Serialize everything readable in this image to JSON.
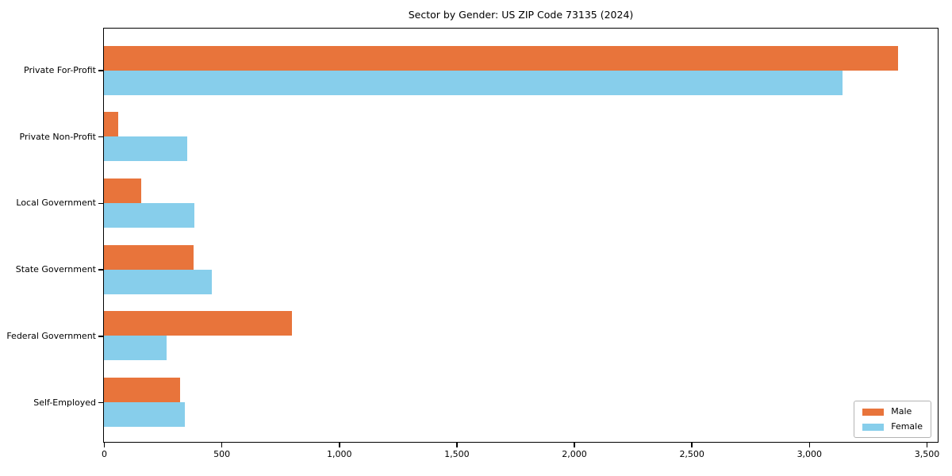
{
  "chart_data": {
    "type": "bar",
    "orientation": "horizontal",
    "title": "Sector by Gender: US ZIP Code 73135 (2024)",
    "categories": [
      "Private For-Profit",
      "Private Non-Profit",
      "Local Government",
      "State Government",
      "Federal Government",
      "Self-Employed"
    ],
    "series": [
      {
        "name": "Male",
        "color": "#e8743b",
        "values": [
          3375,
          60,
          160,
          380,
          800,
          325
        ]
      },
      {
        "name": "Female",
        "color": "#87ceeb",
        "values": [
          3140,
          355,
          385,
          460,
          265,
          345
        ]
      }
    ],
    "xlim": [
      0,
      3544
    ],
    "xticks": [
      0,
      500,
      1000,
      1500,
      2000,
      2500,
      3000,
      3500
    ],
    "xtick_labels": [
      "0",
      "500",
      "1,000",
      "1,500",
      "2,000",
      "2,500",
      "3,000",
      "3,500"
    ],
    "ylabel": "",
    "xlabel": "",
    "grid": false,
    "legend": {
      "position": "lower right",
      "entries": [
        "Male",
        "Female"
      ]
    },
    "colors": {
      "axis": "#000000",
      "background": "#ffffff",
      "legend_border": "#b4b4b4"
    }
  }
}
